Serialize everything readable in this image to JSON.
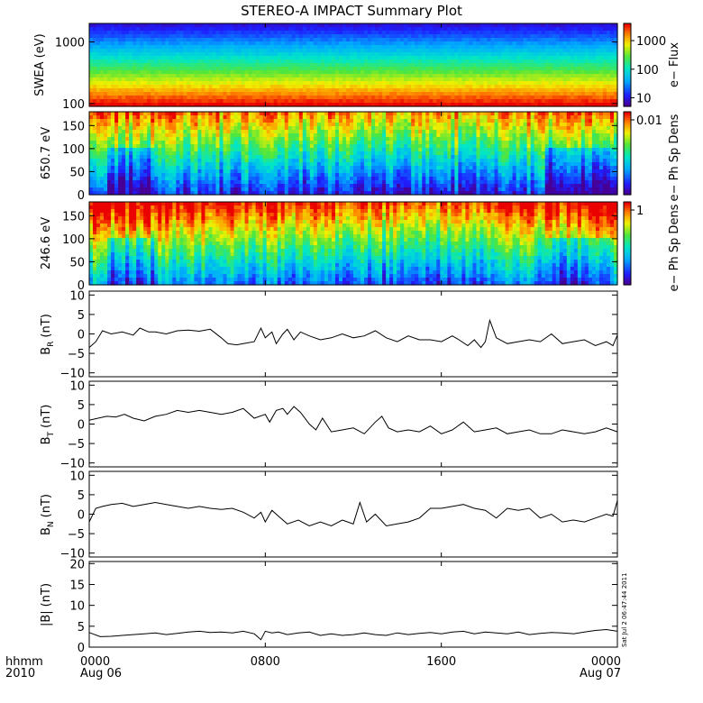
{
  "title": "STEREO-A IMPACT Summary Plot",
  "time_axis": {
    "corner_label_1": "hhmm",
    "corner_label_2": "2010",
    "ticks": [
      {
        "label": "0000",
        "sublabel": "Aug 06",
        "hour": 0
      },
      {
        "label": "0800",
        "sublabel": "",
        "hour": 8
      },
      {
        "label": "1600",
        "sublabel": "",
        "hour": 16
      },
      {
        "label": "0000",
        "sublabel": "Aug 07",
        "hour": 24
      }
    ],
    "range_hours": [
      0,
      24
    ]
  },
  "timestamp": "Sat Jul  2 06:47:44 2011",
  "chart_data": [
    {
      "type": "heatmap",
      "name": "swea",
      "ylabel": "SWEA (eV)",
      "ylog": true,
      "ylim": [
        90,
        2000
      ],
      "yticks": [
        {
          "v": 1000,
          "label": "1000"
        },
        {
          "v": 100,
          "label": "100"
        }
      ],
      "colorbar": {
        "label": "e− Flux",
        "log": true,
        "range": [
          5,
          4000
        ],
        "ticks": [
          {
            "v": 1000,
            "label": "1000"
          },
          {
            "v": 100,
            "label": "100"
          },
          {
            "v": 10,
            "label": "10"
          }
        ]
      }
    },
    {
      "type": "heatmap",
      "name": "pad_650",
      "ylabel": "650.7 eV",
      "ylim": [
        0,
        180
      ],
      "yticks": [
        {
          "v": 0,
          "label": "0"
        },
        {
          "v": 50,
          "label": "50"
        },
        {
          "v": 100,
          "label": "100"
        },
        {
          "v": 150,
          "label": "150"
        }
      ],
      "colorbar": {
        "label": "e− Ph Sp Dens",
        "ticks": [
          {
            "v": 0.01,
            "label": "0.01"
          }
        ]
      }
    },
    {
      "type": "heatmap",
      "name": "pad_246",
      "ylabel": "246.6 eV",
      "ylim": [
        0,
        180
      ],
      "yticks": [
        {
          "v": 0,
          "label": "0"
        },
        {
          "v": 50,
          "label": "50"
        },
        {
          "v": 100,
          "label": "100"
        },
        {
          "v": 150,
          "label": "150"
        }
      ],
      "colorbar": {
        "label": "e− Ph Sp Dens",
        "ticks": [
          {
            "v": 1,
            "label": "1"
          }
        ]
      }
    },
    {
      "type": "line",
      "name": "br",
      "ylabel_main": "B",
      "ylabel_sub": "R",
      "ylabel_units": "(nT)",
      "ylim": [
        -11,
        11
      ],
      "yticks": [
        {
          "v": 10,
          "label": "10"
        },
        {
          "v": 5,
          "label": "5"
        },
        {
          "v": 0,
          "label": "0"
        },
        {
          "v": -5,
          "label": "−5"
        },
        {
          "v": -10,
          "label": "−10"
        }
      ],
      "x": [
        0,
        0.3,
        0.6,
        1,
        1.5,
        2,
        2.3,
        2.7,
        3,
        3.5,
        4,
        4.5,
        5,
        5.5,
        6,
        6.3,
        6.7,
        7,
        7.5,
        7.8,
        8,
        8.3,
        8.5,
        8.8,
        9,
        9.3,
        9.6,
        10,
        10.5,
        11,
        11.5,
        12,
        12.5,
        13,
        13.5,
        14,
        14.5,
        15,
        15.5,
        16,
        16.5,
        16.8,
        17.2,
        17.5,
        17.8,
        18,
        18.2,
        18.5,
        19,
        19.5,
        20,
        20.5,
        21,
        21.5,
        22,
        22.5,
        23,
        23.5,
        23.8,
        24
      ],
      "values": [
        -3.5,
        -2,
        0.8,
        0,
        0.5,
        -0.3,
        1.5,
        0.5,
        0.5,
        0,
        0.8,
        1,
        0.7,
        1.2,
        -1,
        -2.5,
        -2.8,
        -2.5,
        -2,
        1.5,
        -1,
        0.5,
        -2.5,
        0,
        1.2,
        -1.5,
        0.5,
        -0.5,
        -1.5,
        -1,
        0,
        -1,
        -0.5,
        0.8,
        -1,
        -2,
        -0.5,
        -1.5,
        -1.5,
        -2,
        -0.5,
        -1.5,
        -3,
        -1.5,
        -3.5,
        -2,
        3.5,
        -1,
        -2.5,
        -2,
        -1.5,
        -2,
        0,
        -2.5,
        -2,
        -1.5,
        -3,
        -2,
        -3,
        -0.3
      ]
    },
    {
      "type": "line",
      "name": "bt",
      "ylabel_main": "B",
      "ylabel_sub": "T",
      "ylabel_units": "(nT)",
      "ylim": [
        -11,
        11
      ],
      "yticks": [
        {
          "v": 10,
          "label": "10"
        },
        {
          "v": 5,
          "label": "5"
        },
        {
          "v": 0,
          "label": "0"
        },
        {
          "v": -5,
          "label": "−5"
        },
        {
          "v": -10,
          "label": "−10"
        }
      ],
      "x": [
        0,
        0.4,
        0.8,
        1.2,
        1.6,
        2,
        2.5,
        3,
        3.5,
        4,
        4.5,
        5,
        5.5,
        6,
        6.5,
        7,
        7.5,
        8,
        8.2,
        8.5,
        8.8,
        9,
        9.3,
        9.6,
        10,
        10.3,
        10.6,
        11,
        11.5,
        12,
        12.5,
        13,
        13.3,
        13.6,
        14,
        14.5,
        15,
        15.5,
        16,
        16.5,
        17,
        17.5,
        18,
        18.5,
        19,
        19.5,
        20,
        20.5,
        21,
        21.5,
        22,
        22.5,
        23,
        23.5,
        24
      ],
      "values": [
        1,
        1.5,
        2,
        1.8,
        2.5,
        1.5,
        0.8,
        2,
        2.5,
        3.5,
        3,
        3.5,
        3,
        2.5,
        3,
        4,
        1.5,
        2.5,
        0.5,
        3.5,
        4,
        2.5,
        4.5,
        3,
        0,
        -1.5,
        1.5,
        -2,
        -1.5,
        -1,
        -2.5,
        0.5,
        2,
        -1,
        -2,
        -1.5,
        -2,
        -0.5,
        -2.5,
        -1.5,
        0.5,
        -2,
        -1.5,
        -1,
        -2.5,
        -2,
        -1.5,
        -2.5,
        -2.5,
        -1.5,
        -2,
        -2.5,
        -2,
        -1,
        -2
      ]
    },
    {
      "type": "line",
      "name": "bn",
      "ylabel_main": "B",
      "ylabel_sub": "N",
      "ylabel_units": "(nT)",
      "ylim": [
        -11,
        11
      ],
      "yticks": [
        {
          "v": 10,
          "label": "10"
        },
        {
          "v": 5,
          "label": "5"
        },
        {
          "v": 0,
          "label": "0"
        },
        {
          "v": -5,
          "label": "−5"
        },
        {
          "v": -10,
          "label": "−10"
        }
      ],
      "x": [
        0,
        0.3,
        0.6,
        1,
        1.5,
        2,
        2.5,
        3,
        3.5,
        4,
        4.5,
        5,
        5.5,
        6,
        6.5,
        7,
        7.5,
        7.8,
        8,
        8.3,
        8.6,
        9,
        9.5,
        10,
        10.5,
        11,
        11.5,
        12,
        12.3,
        12.6,
        13,
        13.5,
        14,
        14.5,
        15,
        15.5,
        16,
        16.5,
        17,
        17.5,
        18,
        18.5,
        19,
        19.5,
        20,
        20.5,
        21,
        21.5,
        22,
        22.5,
        23,
        23.5,
        23.8,
        24
      ],
      "values": [
        -2,
        1.5,
        2,
        2.5,
        2.8,
        2,
        2.5,
        3,
        2.5,
        2,
        1.5,
        2,
        1.5,
        1.2,
        1.5,
        0.5,
        -1,
        0.5,
        -2,
        1,
        -0.5,
        -2.5,
        -1.5,
        -3,
        -2,
        -3,
        -1.5,
        -2.5,
        3,
        -2,
        0,
        -3,
        -2.5,
        -2,
        -1,
        1.5,
        1.5,
        2,
        2.5,
        1.5,
        1,
        -1,
        1.5,
        1,
        1.5,
        -1,
        0,
        -2,
        -1.5,
        -2,
        -1,
        0,
        -0.5,
        3.5
      ]
    },
    {
      "type": "line",
      "name": "bmag",
      "ylabel_main": "|B|",
      "ylabel_units": "(nT)",
      "ylim": [
        0,
        20.5
      ],
      "yticks": [
        {
          "v": 20,
          "label": "20"
        },
        {
          "v": 15,
          "label": "15"
        },
        {
          "v": 10,
          "label": "10"
        },
        {
          "v": 5,
          "label": "5"
        },
        {
          "v": 0,
          "label": "0"
        }
      ],
      "x": [
        0,
        0.5,
        1,
        1.5,
        2,
        2.5,
        3,
        3.5,
        4,
        4.5,
        5,
        5.5,
        6,
        6.5,
        7,
        7.5,
        7.8,
        8,
        8.3,
        8.6,
        9,
        9.5,
        10,
        10.5,
        11,
        11.5,
        12,
        12.5,
        13,
        13.5,
        14,
        14.5,
        15,
        15.5,
        16,
        16.5,
        17,
        17.5,
        18,
        18.5,
        19,
        19.5,
        20,
        20.5,
        21,
        21.5,
        22,
        22.5,
        23,
        23.5,
        24
      ],
      "values": [
        3.5,
        2.5,
        2.6,
        2.8,
        3,
        3.2,
        3.4,
        3,
        3.3,
        3.6,
        3.8,
        3.5,
        3.6,
        3.4,
        3.8,
        3.2,
        1.8,
        3.8,
        3.4,
        3.6,
        3,
        3.4,
        3.6,
        2.8,
        3.2,
        2.8,
        3,
        3.4,
        3,
        2.8,
        3.4,
        3,
        3.3,
        3.5,
        3.2,
        3.6,
        3.8,
        3.2,
        3.6,
        3.4,
        3.2,
        3.6,
        3,
        3.3,
        3.5,
        3.4,
        3.2,
        3.6,
        4,
        4.2,
        3.8
      ]
    }
  ]
}
